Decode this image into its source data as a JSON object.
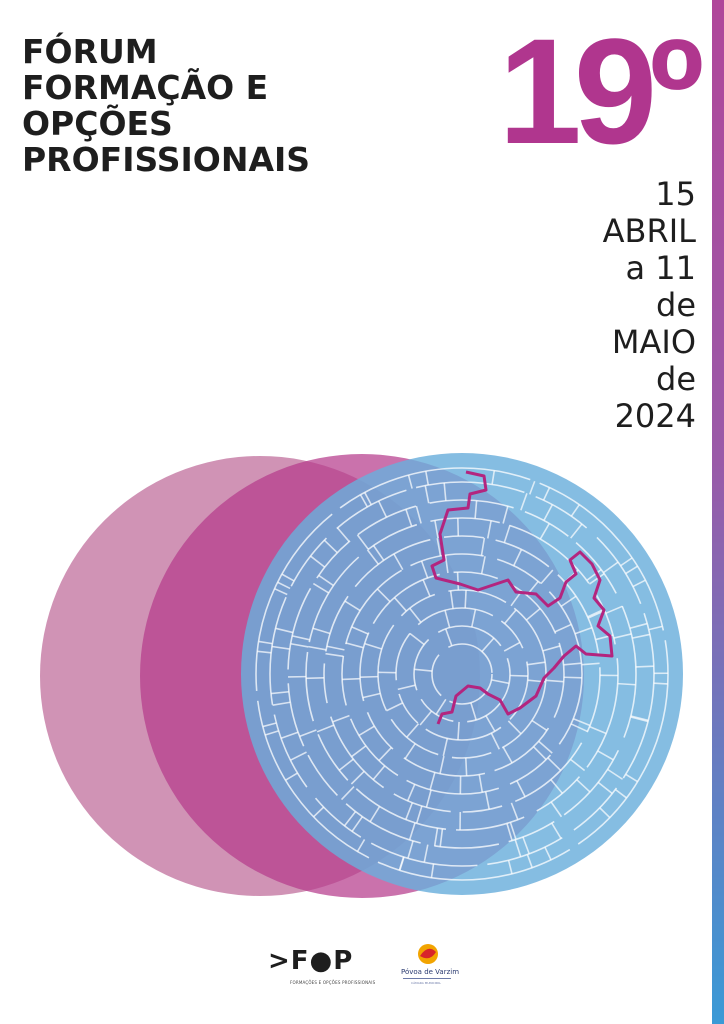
{
  "title_lines": [
    "FÓRUM",
    "FORMAÇÃO E",
    "OPÇÕES",
    "PROFISSIONAIS"
  ],
  "edition": "19º",
  "date_lines": [
    "15",
    "ABRIL",
    "a 11",
    "de",
    "MAIO",
    "de",
    "2024"
  ],
  "logos": {
    "fop_text": ">F●P",
    "fop_subtitle": "FORMAÇÕES E OPÇÕES PROFISSIONAIS",
    "municipality_name": "Póvoa de Varzim",
    "municipality_subtitle": "CÂMARA MUNICIPAL"
  },
  "colors": {
    "magenta": "#b0368e",
    "pink": "#c880a8",
    "blue": "#7ab8df",
    "maze_path": "#b3257f",
    "text": "#1e1e1e"
  },
  "icons": [
    "maze-graphic",
    "fop-logo",
    "povoa-varzim-logo"
  ]
}
